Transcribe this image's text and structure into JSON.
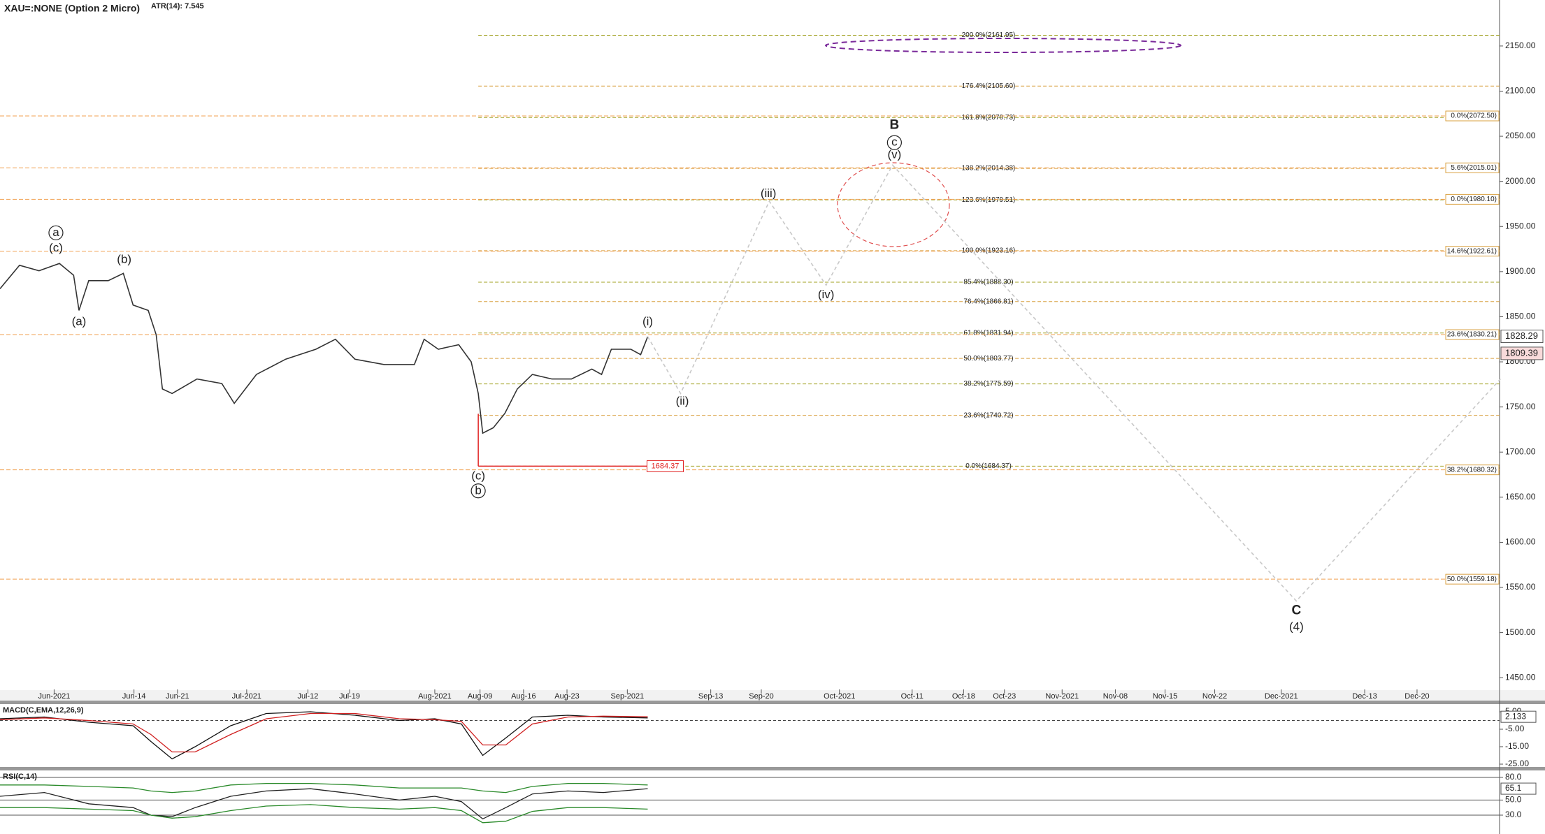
{
  "header": {
    "symbol": "XAU=:NONE (Option 2 Micro)",
    "atr": "ATR(14): 7.545"
  },
  "chart_data": [
    {
      "type": "line",
      "xlim": [
        0,
        169
      ],
      "ylim": [
        1437,
        2201
      ],
      "yticks": [
        {
          "value": 1450,
          "label": "1450.00"
        },
        {
          "value": 1500,
          "label": "1500.00"
        },
        {
          "value": 1550,
          "label": "1550.00"
        },
        {
          "value": 1600,
          "label": "1600.00"
        },
        {
          "value": 1650,
          "label": "1650.00"
        },
        {
          "value": 1700,
          "label": "1700.00"
        },
        {
          "value": 1750,
          "label": "1750.00"
        },
        {
          "value": 1800,
          "label": "1800.00"
        },
        {
          "value": 1850,
          "label": "1850.00"
        },
        {
          "value": 1900,
          "label": "1900.00"
        },
        {
          "value": 1950,
          "label": "1950.00"
        },
        {
          "value": 2000,
          "label": "2000.00"
        },
        {
          "value": 2050,
          "label": "2050.00"
        },
        {
          "value": 2100,
          "label": "2100.00"
        },
        {
          "value": 2150,
          "label": "2150.00"
        }
      ],
      "xticks": [
        {
          "value": 6.1,
          "label": "Jun-2021"
        },
        {
          "value": 15.1,
          "label": "Jun-14"
        },
        {
          "value": 20,
          "label": "Jun-21"
        },
        {
          "value": 27.8,
          "label": "Jul-2021"
        },
        {
          "value": 34.7,
          "label": "Jul-12"
        },
        {
          "value": 39.4,
          "label": "Jul-19"
        },
        {
          "value": 49,
          "label": "Aug-2021"
        },
        {
          "value": 54.1,
          "label": "Aug-09"
        },
        {
          "value": 59,
          "label": "Aug-16"
        },
        {
          "value": 63.9,
          "label": "Aug-23"
        },
        {
          "value": 70.7,
          "label": "Sep-2021"
        },
        {
          "value": 80.1,
          "label": "Sep-13"
        },
        {
          "value": 85.8,
          "label": "Sep-20"
        },
        {
          "value": 94.6,
          "label": "Oct-2021"
        },
        {
          "value": 102.8,
          "label": "Oct-11"
        },
        {
          "value": 108.6,
          "label": "Oct-18"
        },
        {
          "value": 113.2,
          "label": "Oct-23"
        },
        {
          "value": 119.7,
          "label": "Nov-2021"
        },
        {
          "value": 125.7,
          "label": "Nov-08"
        },
        {
          "value": 131.3,
          "label": "Nov-15"
        },
        {
          "value": 136.9,
          "label": "Nov-22"
        },
        {
          "value": 144.4,
          "label": "Dec-2021"
        },
        {
          "value": 153.8,
          "label": "Dec-13"
        },
        {
          "value": 159.7,
          "label": "Dec-20"
        }
      ],
      "series": [
        {
          "color": "#333333",
          "x": [
            0,
            2.2,
            4.4,
            6.7,
            8.3,
            8.9,
            10,
            12.2,
            13.9,
            15,
            16.7,
            17.6,
            18.3,
            19.4,
            22.2,
            25,
            26.4,
            28.9,
            32.2,
            35.6,
            37.8,
            40,
            43.3,
            46.7,
            47.8,
            49.4,
            51.7,
            53.1,
            53.9,
            54.4,
            55.6,
            56.9,
            58.3,
            60,
            62.2,
            64.4,
            66.7,
            67.8,
            68.9,
            71.1,
            72.2,
            73
          ],
          "values": [
            1881,
            1907,
            1901,
            1909,
            1896,
            1857,
            1890,
            1890,
            1898,
            1863,
            1857,
            1830,
            1770,
            1765,
            1781,
            1776,
            1754,
            1786,
            1803,
            1814,
            1825,
            1803,
            1797,
            1797,
            1825,
            1814,
            1819,
            1800,
            1765,
            1721,
            1727,
            1743,
            1770,
            1786,
            1781,
            1781,
            1792,
            1786,
            1814,
            1814,
            1808,
            1828
          ]
        },
        {
          "color": "#c8c8c8",
          "dashed": true,
          "x": [
            73,
            76.7,
            86.7,
            93.1,
            100.6,
            146.1,
            169.1
          ],
          "values": [
            1828,
            1765,
            1978,
            1885,
            2018,
            1535,
            1781
          ]
        }
      ],
      "fib_left": [
        {
          "value": 2161.95,
          "label": "200.0%(2161.95)"
        },
        {
          "value": 2105.6,
          "label": "176.4%(2105.60)"
        },
        {
          "value": 2070.73,
          "label": "161.8%(2070.73)"
        },
        {
          "value": 2014.38,
          "label": "138.2%(2014.38)"
        },
        {
          "value": 1979.51,
          "label": "123.6%(1979.51)"
        },
        {
          "value": 1923.16,
          "label": "100.0%(1923.16)"
        },
        {
          "value": 1888.3,
          "label": "85.4%(1888.30)"
        },
        {
          "value": 1866.81,
          "label": "76.4%(1866.81)"
        },
        {
          "value": 1831.94,
          "label": "61.8%(1831.94)"
        },
        {
          "value": 1803.77,
          "label": "50.0%(1803.77)"
        },
        {
          "value": 1775.59,
          "label": "38.2%(1775.59)"
        },
        {
          "value": 1740.72,
          "label": "23.6%(1740.72)"
        },
        {
          "value": 1684.37,
          "label": "0.0%(1684.37)"
        }
      ],
      "fib_right": [
        {
          "value": 2072.5,
          "label": "0.0%(2072.50)"
        },
        {
          "value": 2015.01,
          "label": "5.6%(2015.01)"
        },
        {
          "value": 1980.1,
          "label": "0.0%(1980.10)"
        },
        {
          "value": 1922.61,
          "label": "14.6%(1922.61)"
        },
        {
          "value": 1830.21,
          "label": "23.6%(1830.21)"
        },
        {
          "value": 1680.32,
          "label": "38.2%(1680.32)"
        },
        {
          "value": 1559.18,
          "label": "50.0%(1559.18)"
        }
      ],
      "support": {
        "value": 1684.37,
        "x": [
          53.9,
          76.7
        ]
      },
      "price_tags": [
        {
          "value": 1828.29,
          "color": "#ffffff"
        },
        {
          "value": 1809.39,
          "color": "#f8dada"
        }
      ],
      "waves": [
        {
          "text": "a",
          "x": 6.3,
          "y": 1943,
          "circled": true
        },
        {
          "text": "(c)",
          "x": 6.3,
          "y": 1926
        },
        {
          "text": "(b)",
          "x": 14,
          "y": 1913
        },
        {
          "text": "(a)",
          "x": 8.9,
          "y": 1844
        },
        {
          "text": "(c)",
          "x": 53.9,
          "y": 1673
        },
        {
          "text": "b",
          "x": 53.9,
          "y": 1657,
          "circled": true
        },
        {
          "text": "(i)",
          "x": 73,
          "y": 1844
        },
        {
          "text": "(ii)",
          "x": 76.9,
          "y": 1756
        },
        {
          "text": "(iii)",
          "x": 86.6,
          "y": 1986
        },
        {
          "text": "(iv)",
          "x": 93.1,
          "y": 1874
        },
        {
          "text": "B",
          "x": 100.8,
          "y": 2062,
          "bold": true
        },
        {
          "text": "c",
          "x": 100.8,
          "y": 2043,
          "circled": true
        },
        {
          "text": "(v)",
          "x": 100.8,
          "y": 2029
        },
        {
          "text": "C",
          "x": 146.1,
          "y": 1524,
          "bold": true
        },
        {
          "text": "(4)",
          "x": 146.1,
          "y": 1506
        }
      ]
    },
    {
      "type": "line",
      "title": "MACD(C,EMA,12,26,9)",
      "ylim": [
        -26.2,
        9
      ],
      "yticks": [
        {
          "value": 5,
          "label": "5.00"
        },
        {
          "value": -5,
          "label": "-5.00"
        },
        {
          "value": -15,
          "label": "-15.00"
        },
        {
          "value": -25,
          "label": "-25.00"
        }
      ],
      "zero": 0,
      "tag": {
        "value": 2.133,
        "label": "2.133"
      },
      "series": [
        {
          "color": "#111111",
          "x": [
            0,
            5,
            10,
            15,
            17,
            19.4,
            22,
            26,
            30,
            35,
            40,
            45,
            49,
            52,
            54.4,
            57,
            60,
            64,
            68,
            73
          ],
          "values": [
            1,
            2,
            -1,
            -3,
            -12,
            -22,
            -15,
            -3,
            4,
            5,
            3,
            0,
            1,
            -2,
            -20,
            -10,
            2,
            3,
            2,
            1.5
          ]
        },
        {
          "color": "#d02020",
          "x": [
            0,
            5,
            10,
            15,
            17,
            19.4,
            22,
            26,
            30,
            35,
            40,
            45,
            49,
            52,
            54.4,
            57,
            60,
            64,
            68,
            73
          ],
          "values": [
            0.5,
            1.5,
            0,
            -2,
            -8,
            -18,
            -18,
            -8,
            1,
            4,
            4,
            1,
            0.5,
            -0.5,
            -14,
            -14,
            -2,
            2,
            2.5,
            2.133
          ]
        }
      ]
    },
    {
      "type": "line",
      "title": "RSI(C,14)",
      "ylim": [
        7.8,
        88.3
      ],
      "yticks": [
        {
          "value": 80,
          "label": "80.0"
        },
        {
          "value": 50,
          "label": "50.0"
        },
        {
          "value": 30,
          "label": "30.0"
        }
      ],
      "tag": {
        "value": 65.1,
        "label": "65.1"
      },
      "series": [
        {
          "color": "#222222",
          "x": [
            0,
            5,
            10,
            15,
            17,
            19.4,
            22,
            26,
            30,
            35,
            40,
            45,
            49,
            52,
            54.4,
            57,
            60,
            64,
            68,
            73
          ],
          "values": [
            55,
            60,
            45,
            40,
            30,
            28,
            40,
            55,
            62,
            65,
            58,
            50,
            55,
            48,
            25,
            40,
            58,
            62,
            60,
            65.1
          ]
        },
        {
          "color": "#2a8a2a",
          "x": [
            0,
            5,
            10,
            15,
            17,
            19.4,
            22,
            26,
            30,
            35,
            40,
            45,
            49,
            52,
            54.4,
            57,
            60,
            64,
            68,
            73
          ],
          "values": [
            70,
            70,
            68,
            66,
            62,
            60,
            62,
            70,
            72,
            72,
            70,
            66,
            66,
            66,
            62,
            60,
            68,
            72,
            72,
            70
          ]
        },
        {
          "color": "#2a8a2a",
          "x": [
            0,
            5,
            10,
            15,
            17,
            19.4,
            22,
            26,
            30,
            35,
            40,
            45,
            49,
            52,
            54.4,
            57,
            60,
            64,
            68,
            73
          ],
          "values": [
            40,
            40,
            38,
            36,
            30,
            26,
            28,
            36,
            42,
            44,
            40,
            38,
            40,
            36,
            20,
            22,
            35,
            40,
            40,
            38
          ]
        }
      ]
    }
  ]
}
